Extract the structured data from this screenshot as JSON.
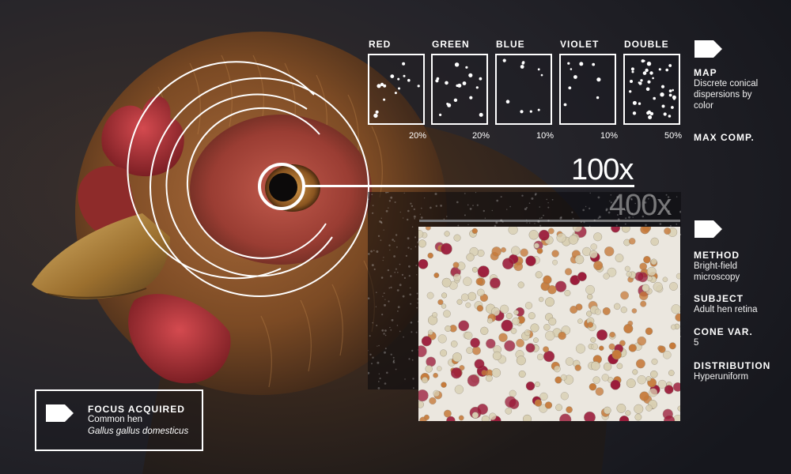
{
  "maps": [
    {
      "label": "RED",
      "pct": "20%",
      "dot_color": "#ffffff",
      "dot_count": 14
    },
    {
      "label": "GREEN",
      "pct": "20%",
      "dot_color": "#ffffff",
      "dot_count": 18
    },
    {
      "label": "BLUE",
      "pct": "10%",
      "dot_color": "#ffffff",
      "dot_count": 10
    },
    {
      "label": "VIOLET",
      "pct": "10%",
      "dot_color": "#ffffff",
      "dot_count": 9
    },
    {
      "label": "DOUBLE",
      "pct": "50%",
      "dot_color": "#ffffff",
      "dot_count": 38
    }
  ],
  "side": {
    "map_title": "MAP",
    "map_text": "Discrete conical dispersions by color",
    "max_comp": "MAX COMP.",
    "method_title": "METHOD",
    "method_text": "Bright-field microscopy",
    "subject_title": "SUBJECT",
    "subject_text": "Adult hen retina",
    "cone_title": "CONE VAR.",
    "cone_text": "5",
    "dist_title": "DISTRIBUTION",
    "dist_text": "Hyperuniform"
  },
  "zoom": {
    "z1": "100x",
    "z2": "400x"
  },
  "focus": {
    "title": "FOCUS ACQUIRED",
    "line1": "Common hen",
    "line2": "Gallus gallus domesticus"
  },
  "colors": {
    "hud": "#ffffff",
    "background": "#1d1e25",
    "feather": "#8a4e22",
    "comb": "#b8333a",
    "beak": "#b58a3e",
    "cone_red": "#9b1b3a",
    "cone_orange": "#c67a3a",
    "cone_pale": "#d9d0b3"
  }
}
